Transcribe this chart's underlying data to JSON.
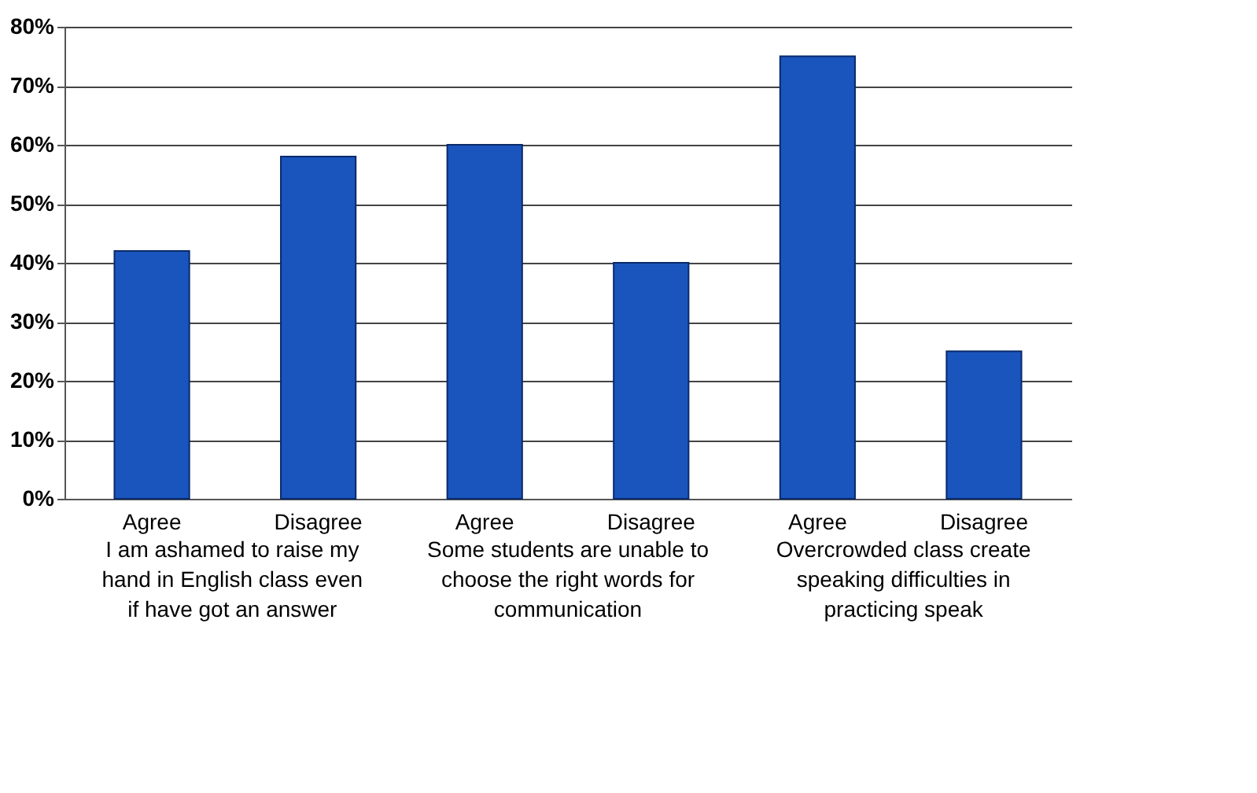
{
  "chart_data": {
    "type": "bar",
    "categories": [
      "Agree",
      "Disagree",
      "Agree",
      "Disagree",
      "Agree",
      "Disagree"
    ],
    "values": [
      42,
      58,
      60,
      40,
      75,
      25
    ],
    "color": "#1a55bd",
    "ylim": [
      0,
      80
    ],
    "yticks": [
      {
        "value": 0,
        "label": "0%"
      },
      {
        "value": 10,
        "label": "10%"
      },
      {
        "value": 20,
        "label": "20%"
      },
      {
        "value": 30,
        "label": "30%"
      },
      {
        "value": 40,
        "label": "40%"
      },
      {
        "value": 50,
        "label": "50%"
      },
      {
        "value": 60,
        "label": "60%"
      },
      {
        "value": 70,
        "label": "70%"
      },
      {
        "value": 80,
        "label": "80%"
      }
    ],
    "grid": "y",
    "annotations": [
      "I am ashamed to raise my hand in English class even if have got an answer",
      "Some students are unable to choose the right words for communication",
      "Overcrowded class create speaking difficulties in practicing speak"
    ]
  }
}
